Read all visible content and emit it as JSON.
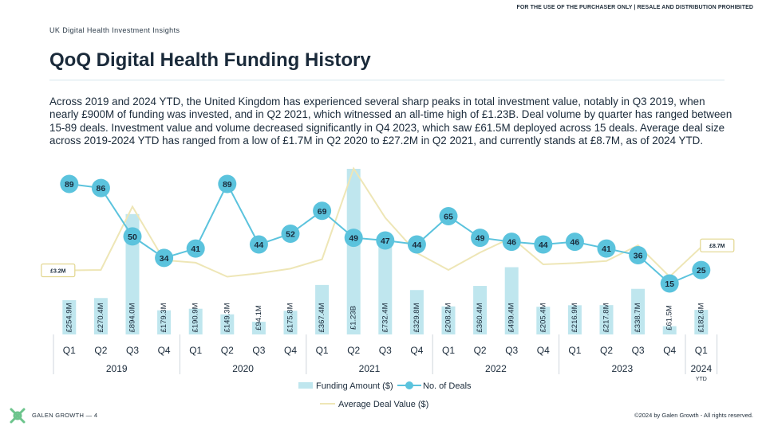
{
  "header": {
    "disclaimer": "FOR THE USE OF THE PURCHASER ONLY | RESALE AND DISTRIBUTION PROHIBITED",
    "section": "UK Digital Health Investment Insights",
    "title": "QoQ Digital Health Funding History"
  },
  "body_text": "Across 2019 and 2024 YTD, the United Kingdom has experienced several sharp peaks in total investment value, notably in Q3 2019, when nearly £900M of funding was invested, and in Q2 2021, which witnessed an all-time high of £1.23B. Deal volume by quarter has ranged between 15-89 deals. Investment value and volume decreased significantly in Q4 2023, which saw £61.5M deployed across 15 deals. Average deal size across 2019-2024 YTD has ranged from a low of £1.7M in Q2 2020 to £27.2M in Q2 2021, and currently stands at £8.7M, as of 2024 YTD.",
  "footer": {
    "left": "GALEN GROWTH  —  4",
    "right": "©2024 by Galen Growth  - All rights reserved."
  },
  "colors": {
    "bar": "#bfe6ee",
    "deals": "#5bc3dd",
    "avg": "#eee6b6",
    "text": "#1a2a3a",
    "logo": "#6cc48c"
  },
  "chart_data": {
    "type": "bar",
    "categories": [
      "Q1",
      "Q2",
      "Q3",
      "Q4",
      "Q1",
      "Q2",
      "Q3",
      "Q4",
      "Q1",
      "Q2",
      "Q3",
      "Q4",
      "Q1",
      "Q2",
      "Q3",
      "Q4",
      "Q1",
      "Q2",
      "Q3",
      "Q4",
      "Q1"
    ],
    "year_groups": [
      {
        "label": "2019",
        "count": 4,
        "sub": ""
      },
      {
        "label": "2020",
        "count": 4,
        "sub": ""
      },
      {
        "label": "2021",
        "count": 4,
        "sub": ""
      },
      {
        "label": "2022",
        "count": 4,
        "sub": ""
      },
      {
        "label": "2023",
        "count": 4,
        "sub": ""
      },
      {
        "label": "2024",
        "count": 1,
        "sub": "YTD"
      }
    ],
    "series": [
      {
        "name": "Funding Amount ($)",
        "type": "bar",
        "values": [
          254.9,
          270.4,
          894.0,
          179.3,
          190.9,
          149.3,
          94.1,
          175.8,
          367.4,
          1230,
          732.4,
          329.8,
          208.2,
          360.4,
          499.4,
          205.4,
          216.9,
          217.8,
          338.7,
          61.5,
          182.6
        ],
        "labels": [
          "£254.9M",
          "£270.4M",
          "£894.0M",
          "£179.3M",
          "£190.9M",
          "£149.3M",
          "£94.1M",
          "£175.8M",
          "£367.4M",
          "£1.23B",
          "£732.4M",
          "£329.8M",
          "£208.2M",
          "£360.4M",
          "£499.4M",
          "£205.4M",
          "£216.9M",
          "£217.8M",
          "£338.7M",
          "£61.5M",
          "£182.6M"
        ]
      },
      {
        "name": "No. of Deals",
        "type": "line",
        "values": [
          89,
          86,
          50,
          34,
          41,
          89,
          44,
          52,
          69,
          49,
          47,
          44,
          65,
          49,
          46,
          44,
          46,
          41,
          36,
          15,
          25
        ]
      },
      {
        "name": "Average Deal Value ($)",
        "type": "line",
        "values": [
          3.2,
          3.3,
          18.2,
          5.6,
          5.0,
          1.7,
          2.5,
          3.6,
          5.8,
          27.2,
          15.6,
          7.3,
          3.3,
          7.4,
          10.9,
          4.6,
          4.9,
          5.4,
          9.1,
          1.7,
          8.7
        ],
        "callouts": [
          {
            "index": 0,
            "label": "£3.2M"
          },
          {
            "index": 20,
            "label": "£8.7M"
          }
        ]
      }
    ]
  }
}
